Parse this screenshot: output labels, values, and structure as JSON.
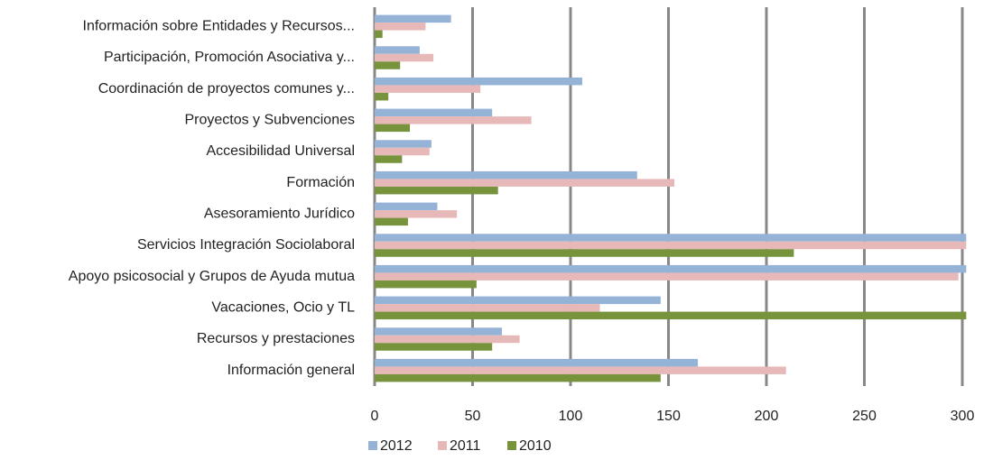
{
  "chart_data": {
    "type": "bar",
    "orientation": "horizontal",
    "categories": [
      "Información sobre Entidades  y Recursos...",
      "Participación, Promoción Asociativa y...",
      "Coordinación de proyectos comunes y...",
      "Proyectos y Subvenciones",
      "Accesibilidad Universal",
      "Formación",
      "Asesoramiento Jurídico",
      "Servicios Integración Sociolaboral",
      "Apoyo psicosocial y Grupos de Ayuda mutua",
      "Vacaciones, Ocio y TL",
      "Recursos y prestaciones",
      "Información general"
    ],
    "series": [
      {
        "name": "2012",
        "color": "#95b3d7",
        "values": [
          39,
          23,
          106,
          60,
          29,
          134,
          32,
          302,
          302,
          146,
          65,
          165
        ]
      },
      {
        "name": "2011",
        "color": "#e6b9b8",
        "values": [
          26,
          30,
          54,
          80,
          28,
          153,
          42,
          302,
          298,
          115,
          74,
          210
        ]
      },
      {
        "name": "2010",
        "color": "#77933c",
        "values": [
          4,
          13,
          7,
          18,
          14,
          63,
          17,
          214,
          52,
          302,
          60,
          146
        ]
      }
    ],
    "xlim": [
      0,
      300
    ],
    "xticks": [
      0,
      50,
      100,
      150,
      200,
      250,
      300
    ],
    "grid": true,
    "legend": "bottom"
  }
}
